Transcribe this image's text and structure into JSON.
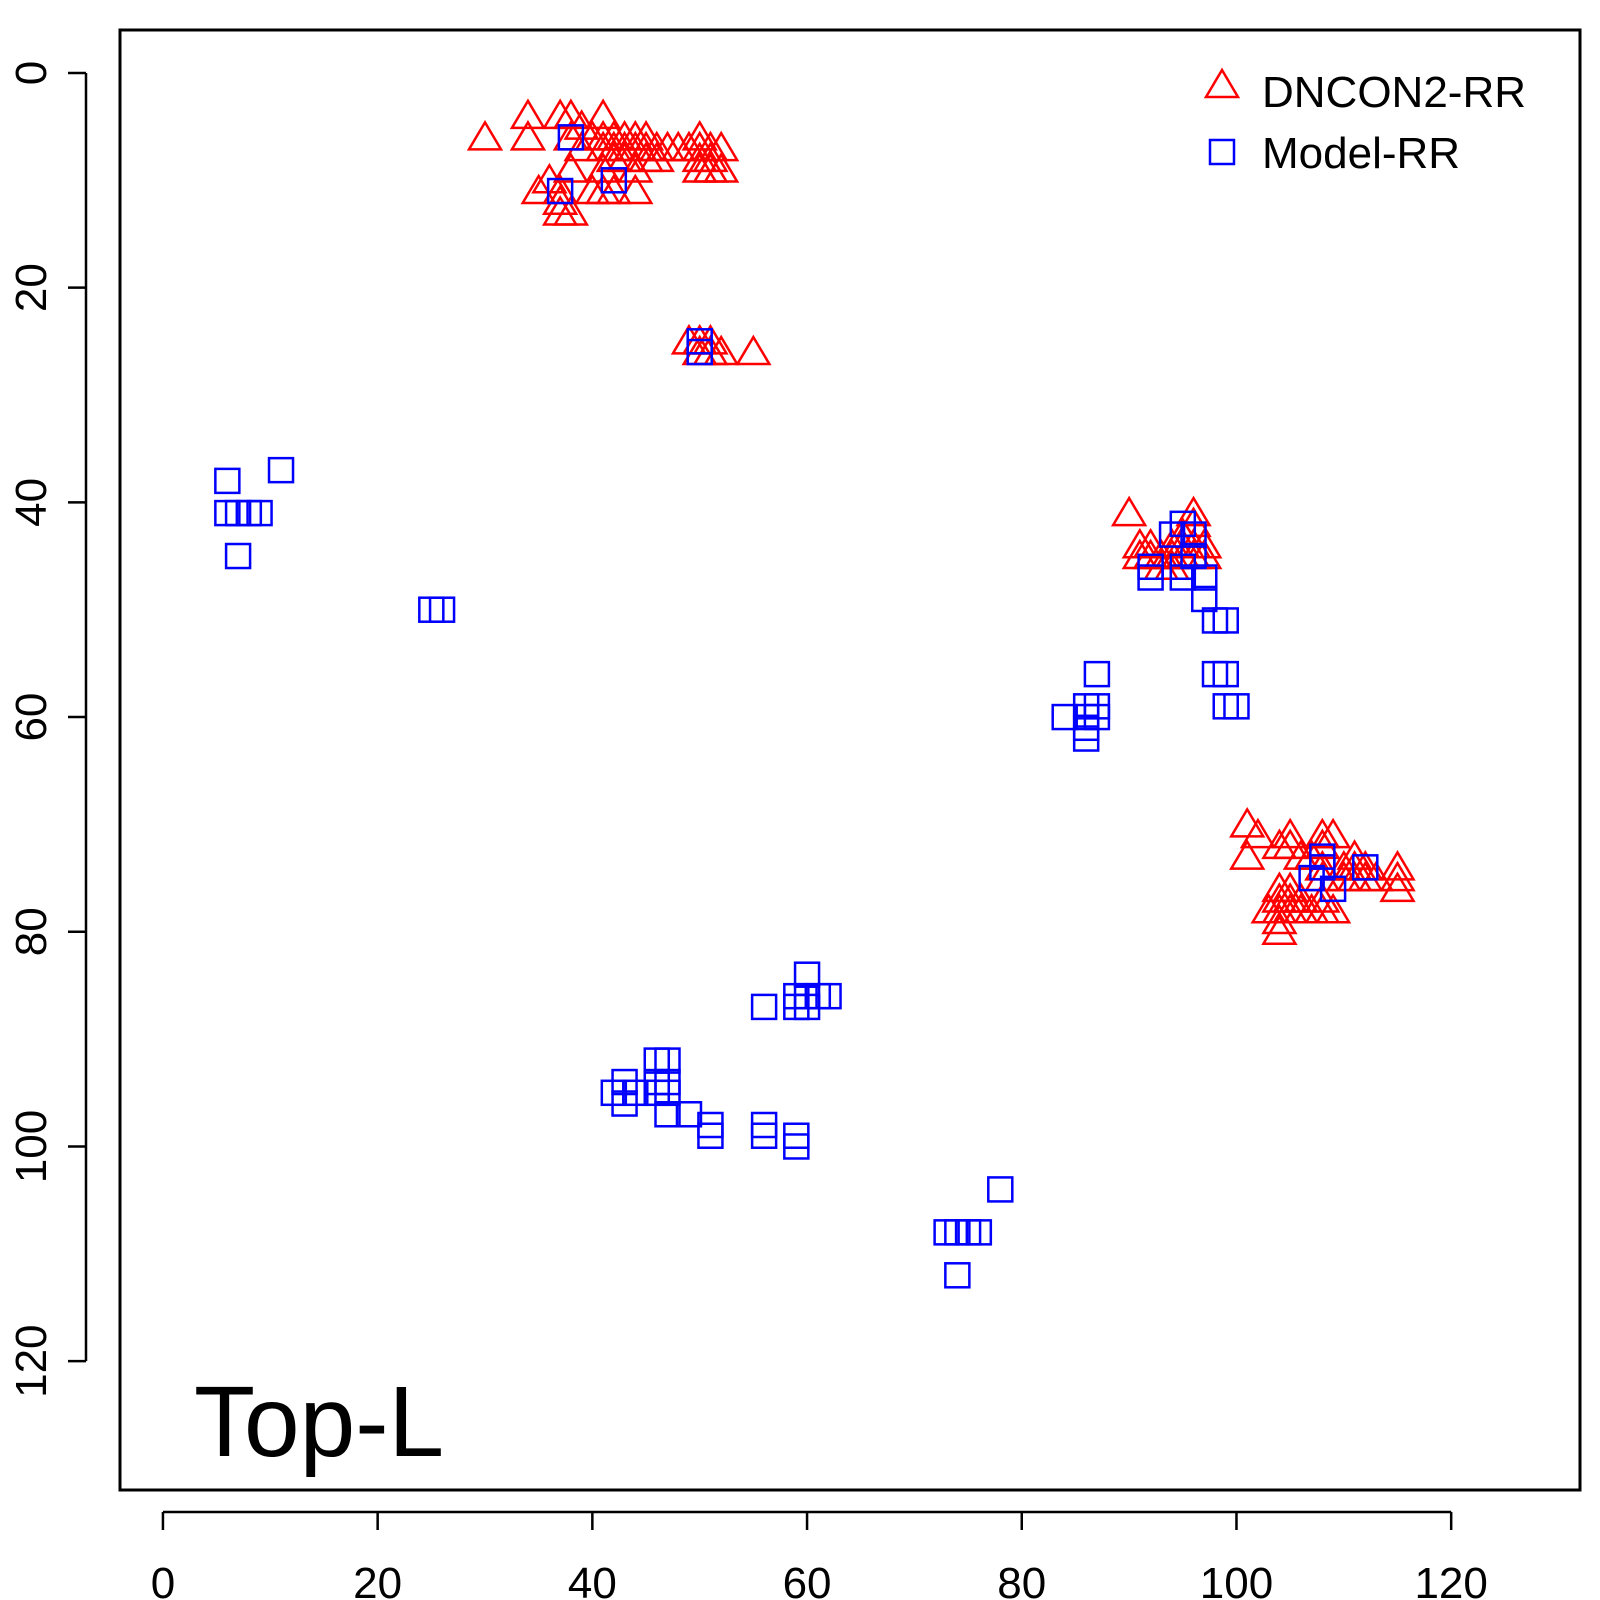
{
  "chart_data": {
    "type": "scatter",
    "panel_label": "Top-L",
    "xlim": [
      -4,
      132
    ],
    "ylim": [
      132,
      -4
    ],
    "y_reversed": true,
    "x_ticks": [
      0,
      20,
      40,
      60,
      80,
      100,
      120
    ],
    "y_ticks": [
      0,
      20,
      40,
      60,
      80,
      100,
      120
    ],
    "grid": false,
    "legend_position": "top-right",
    "series": [
      {
        "name": "DNCON2-RR",
        "marker": "triangle-open",
        "color": "#ff0000",
        "points": [
          [
            30,
            6
          ],
          [
            34,
            4
          ],
          [
            34,
            6
          ],
          [
            35,
            11
          ],
          [
            36,
            10
          ],
          [
            37,
            4
          ],
          [
            37,
            11
          ],
          [
            37,
            12
          ],
          [
            37,
            13
          ],
          [
            38,
            4
          ],
          [
            38,
            6
          ],
          [
            38,
            9
          ],
          [
            38,
            13
          ],
          [
            39,
            5
          ],
          [
            39,
            7
          ],
          [
            40,
            6
          ],
          [
            40,
            11
          ],
          [
            41,
            4
          ],
          [
            41,
            6
          ],
          [
            41,
            7
          ],
          [
            41,
            9
          ],
          [
            41,
            11
          ],
          [
            42,
            6
          ],
          [
            42,
            7
          ],
          [
            42,
            8
          ],
          [
            42,
            11
          ],
          [
            43,
            6
          ],
          [
            43,
            7
          ],
          [
            43,
            8
          ],
          [
            44,
            6
          ],
          [
            44,
            7
          ],
          [
            44,
            9
          ],
          [
            44,
            11
          ],
          [
            45,
            6
          ],
          [
            45,
            7
          ],
          [
            45,
            8
          ],
          [
            46,
            7
          ],
          [
            46,
            8
          ],
          [
            47,
            7
          ],
          [
            48,
            7
          ],
          [
            49,
            7
          ],
          [
            50,
            6
          ],
          [
            50,
            7
          ],
          [
            50,
            8
          ],
          [
            50,
            9
          ],
          [
            51,
            7
          ],
          [
            51,
            8
          ],
          [
            51,
            9
          ],
          [
            52,
            7
          ],
          [
            52,
            9
          ],
          [
            49,
            25
          ],
          [
            50,
            25
          ],
          [
            50,
            26
          ],
          [
            51,
            25
          ],
          [
            51,
            26
          ],
          [
            52,
            26
          ],
          [
            55,
            26
          ],
          [
            90,
            41
          ],
          [
            91,
            44
          ],
          [
            91,
            45
          ],
          [
            92,
            44
          ],
          [
            92,
            45
          ],
          [
            93,
            45
          ],
          [
            93,
            46
          ],
          [
            94,
            44
          ],
          [
            94,
            45
          ],
          [
            94,
            46
          ],
          [
            95,
            43
          ],
          [
            95,
            44
          ],
          [
            95,
            45
          ],
          [
            96,
            41
          ],
          [
            96,
            42
          ],
          [
            96,
            44
          ],
          [
            96,
            45
          ],
          [
            97,
            44
          ],
          [
            97,
            45
          ],
          [
            101,
            70
          ],
          [
            101,
            73
          ],
          [
            102,
            71
          ],
          [
            103,
            78
          ],
          [
            104,
            72
          ],
          [
            104,
            76
          ],
          [
            104,
            77
          ],
          [
            104,
            78
          ],
          [
            104,
            79
          ],
          [
            104,
            80
          ],
          [
            105,
            71
          ],
          [
            105,
            72
          ],
          [
            105,
            76
          ],
          [
            105,
            77
          ],
          [
            105,
            78
          ],
          [
            106,
            73
          ],
          [
            106,
            77
          ],
          [
            106,
            78
          ],
          [
            107,
            73
          ],
          [
            107,
            78
          ],
          [
            108,
            71
          ],
          [
            108,
            72
          ],
          [
            108,
            74
          ],
          [
            108,
            75
          ],
          [
            108,
            77
          ],
          [
            108,
            78
          ],
          [
            109,
            71
          ],
          [
            109,
            78
          ],
          [
            110,
            74
          ],
          [
            110,
            75
          ],
          [
            111,
            73
          ],
          [
            111,
            74
          ],
          [
            111,
            75
          ],
          [
            112,
            74
          ],
          [
            112,
            75
          ],
          [
            113,
            75
          ],
          [
            115,
            74
          ],
          [
            115,
            75
          ],
          [
            115,
            76
          ]
        ]
      },
      {
        "name": "Model-RR",
        "marker": "square-open",
        "color": "#0000ff",
        "points": [
          [
            37,
            11
          ],
          [
            38,
            6
          ],
          [
            42,
            10
          ],
          [
            50,
            25
          ],
          [
            50,
            26
          ],
          [
            6,
            38
          ],
          [
            6,
            41
          ],
          [
            7,
            41
          ],
          [
            7,
            45
          ],
          [
            8,
            41
          ],
          [
            9,
            41
          ],
          [
            11,
            37
          ],
          [
            25,
            50
          ],
          [
            26,
            50
          ],
          [
            84,
            60
          ],
          [
            86,
            59
          ],
          [
            86,
            60
          ],
          [
            86,
            61
          ],
          [
            86,
            62
          ],
          [
            87,
            56
          ],
          [
            87,
            59
          ],
          [
            87,
            60
          ],
          [
            92,
            46
          ],
          [
            92,
            47
          ],
          [
            94,
            43
          ],
          [
            95,
            42
          ],
          [
            95,
            46
          ],
          [
            95,
            47
          ],
          [
            96,
            43
          ],
          [
            96,
            45
          ],
          [
            97,
            47
          ],
          [
            97,
            49
          ],
          [
            98,
            51
          ],
          [
            98,
            56
          ],
          [
            99,
            51
          ],
          [
            99,
            56
          ],
          [
            99,
            59
          ],
          [
            100,
            59
          ],
          [
            107,
            75
          ],
          [
            108,
            73
          ],
          [
            108,
            74
          ],
          [
            109,
            76
          ],
          [
            112,
            74
          ],
          [
            42,
            95
          ],
          [
            43,
            94
          ],
          [
            43,
            96
          ],
          [
            44,
            95
          ],
          [
            46,
            92
          ],
          [
            46,
            94
          ],
          [
            46,
            95
          ],
          [
            47,
            92
          ],
          [
            47,
            94
          ],
          [
            47,
            95
          ],
          [
            47,
            97
          ],
          [
            49,
            97
          ],
          [
            51,
            98
          ],
          [
            51,
            99
          ],
          [
            56,
            87
          ],
          [
            56,
            98
          ],
          [
            56,
            99
          ],
          [
            59,
            86
          ],
          [
            59,
            87
          ],
          [
            59,
            99
          ],
          [
            59,
            100
          ],
          [
            60,
            84
          ],
          [
            60,
            86
          ],
          [
            60,
            87
          ],
          [
            61,
            86
          ],
          [
            62,
            86
          ],
          [
            73,
            108
          ],
          [
            74,
            108
          ],
          [
            74,
            112
          ],
          [
            75,
            108
          ],
          [
            76,
            108
          ],
          [
            78,
            104
          ]
        ]
      }
    ]
  }
}
